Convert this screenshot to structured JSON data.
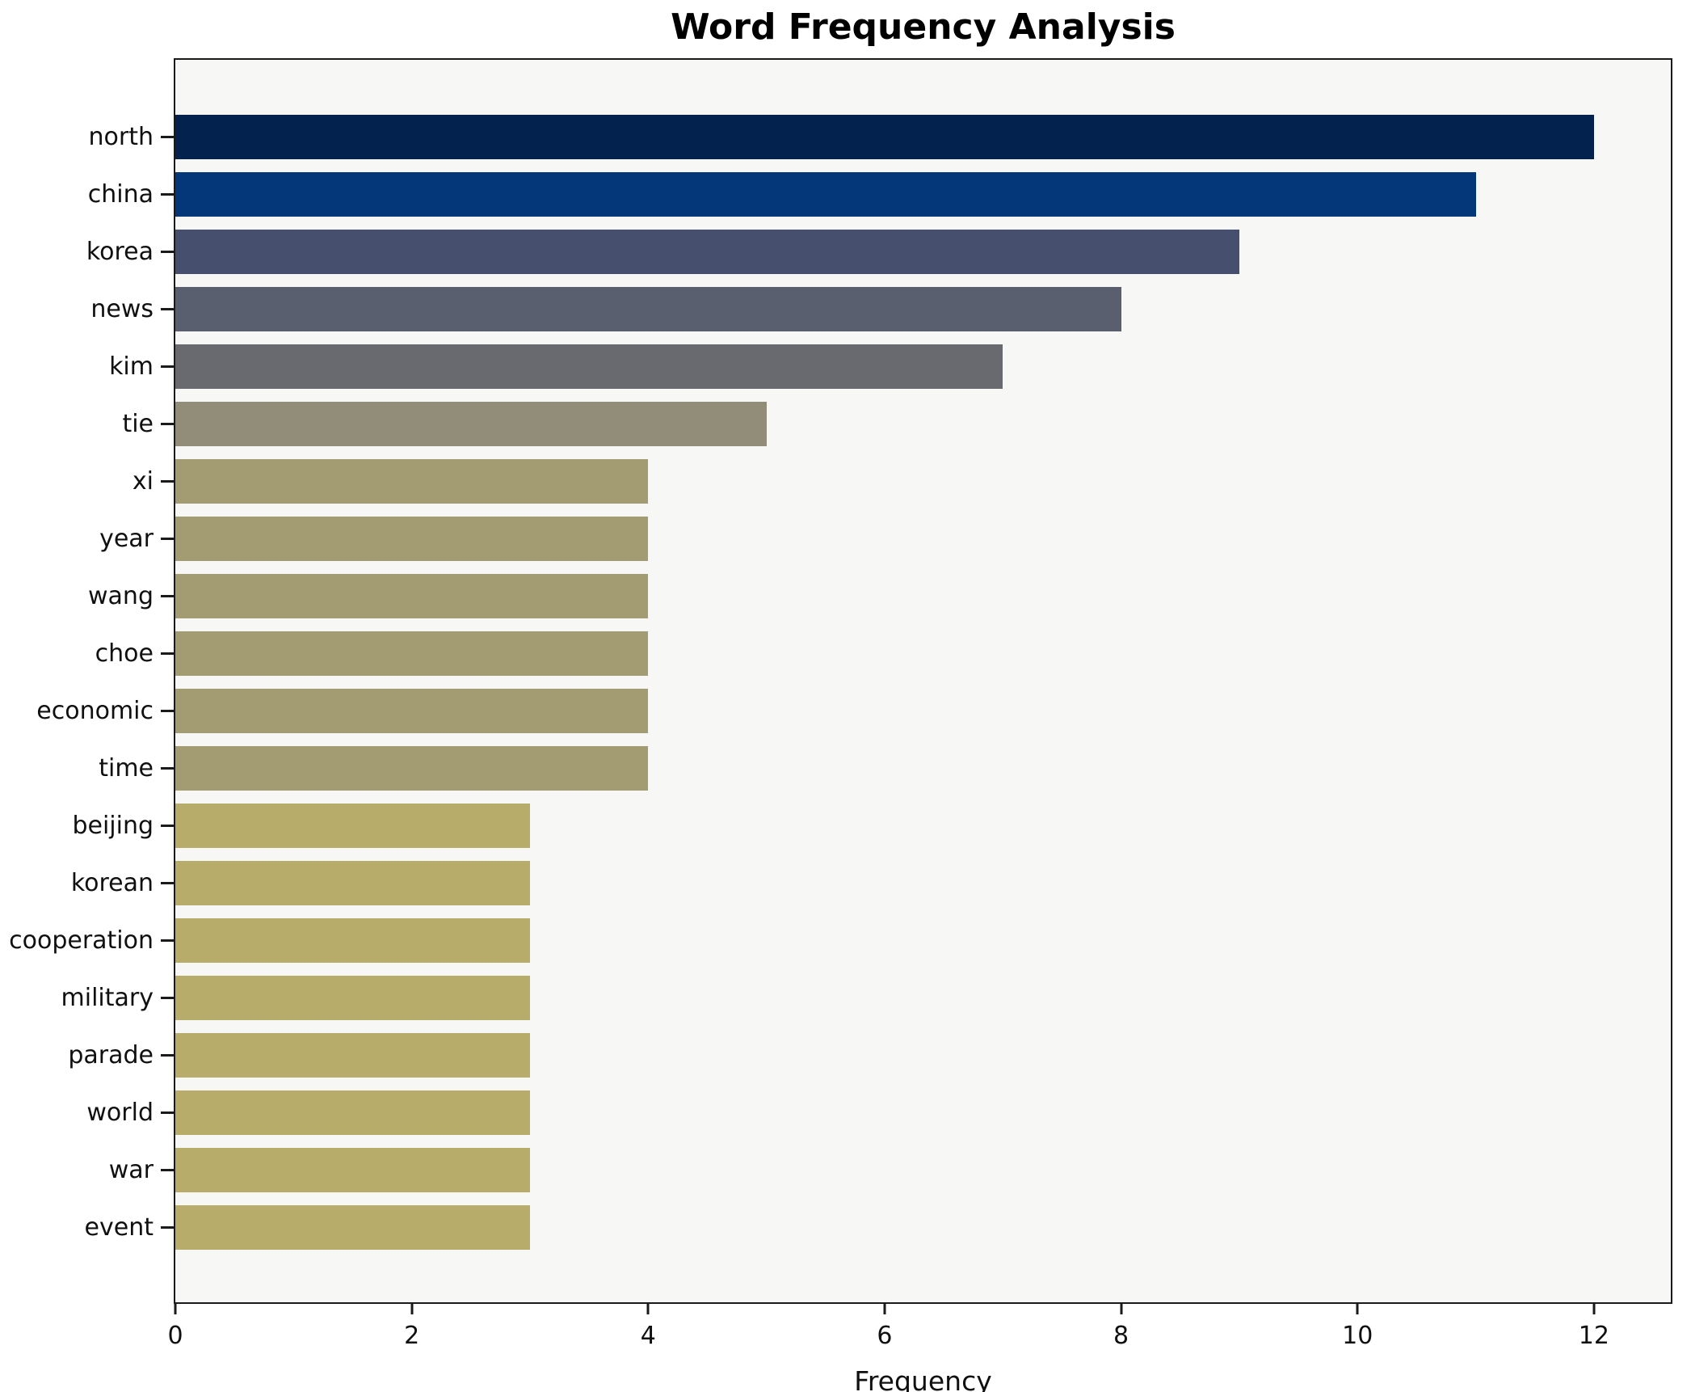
{
  "chart_data": {
    "type": "bar",
    "orientation": "horizontal",
    "title": "Word Frequency Analysis",
    "xlabel": "Frequency",
    "ylabel": "",
    "categories": [
      "north",
      "china",
      "korea",
      "news",
      "kim",
      "tie",
      "xi",
      "year",
      "wang",
      "choe",
      "economic",
      "time",
      "beijing",
      "korean",
      "cooperation",
      "military",
      "parade",
      "world",
      "war",
      "event"
    ],
    "values": [
      12,
      11,
      9,
      8,
      7,
      5,
      4,
      4,
      4,
      4,
      4,
      4,
      3,
      3,
      3,
      3,
      3,
      3,
      3,
      3
    ],
    "bar_colors": [
      "#03224d",
      "#04377a",
      "#46506e",
      "#5a5f70",
      "#696a70",
      "#918d79",
      "#a39b72",
      "#a39b72",
      "#a39b72",
      "#a39b72",
      "#a39b72",
      "#a39b72",
      "#b8ac6b",
      "#b8ac6b",
      "#b8ac6b",
      "#b8ac6b",
      "#b8ac6b",
      "#b8ac6b",
      "#b8ac6b",
      "#b8ac6b"
    ],
    "xticks": [
      0,
      2,
      4,
      6,
      8,
      10,
      12
    ],
    "xlim": [
      0,
      12.65
    ],
    "grid": false,
    "legend_position": "none",
    "plot_background": "#f7f7f5",
    "figure_background": "#ffffff",
    "spine_color": "#1a1a1a"
  }
}
